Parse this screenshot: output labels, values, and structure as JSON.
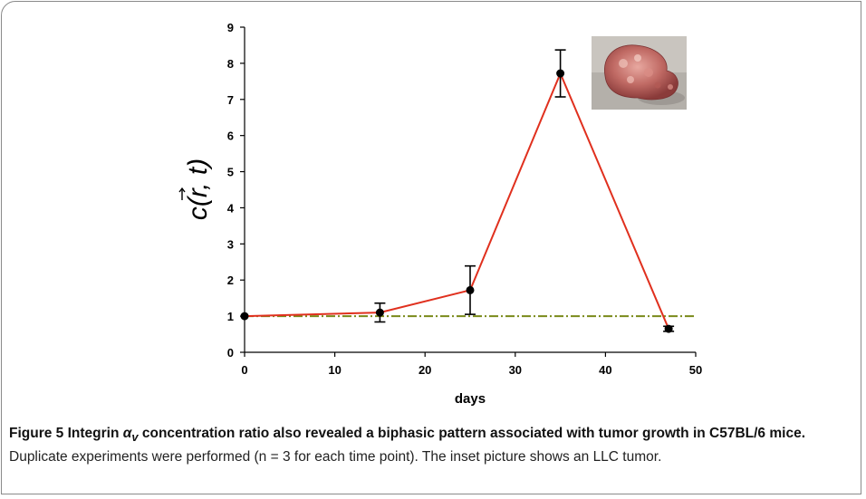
{
  "chart_data": {
    "type": "line",
    "xlabel": "days",
    "ylabel_prefix": "c(",
    "ylabel_vec": "r",
    "ylabel_suffix": ", t)",
    "xlim": [
      0,
      50
    ],
    "ylim": [
      0,
      9
    ],
    "xticks": [
      0,
      10,
      20,
      30,
      40,
      50
    ],
    "yticks": [
      0,
      1,
      2,
      3,
      4,
      5,
      6,
      7,
      8,
      9
    ],
    "grid": false,
    "series": [
      {
        "x": [
          0,
          15,
          25,
          35,
          47
        ],
        "y": [
          1.0,
          1.1,
          1.72,
          7.72,
          0.65
        ],
        "error": [
          0,
          0.26,
          0.67,
          0.65,
          0.07
        ],
        "color": "#e0301e"
      }
    ],
    "reference_line": {
      "y": 1,
      "style": "dash-dot",
      "color": "#7a8a1a"
    },
    "inset": {
      "content": "photo of excised LLC tumor"
    }
  },
  "caption": {
    "label": "Figure 5",
    "title_prefix": "Integrin ",
    "alpha": "α",
    "alpha_sub": "v",
    "title_suffix": " concentration ratio also revealed a biphasic pattern associated with tumor growth in C57BL/6 mice.",
    "body": " Duplicate experiments were performed (n = 3 for each time point). The inset picture shows an LLC tumor."
  }
}
